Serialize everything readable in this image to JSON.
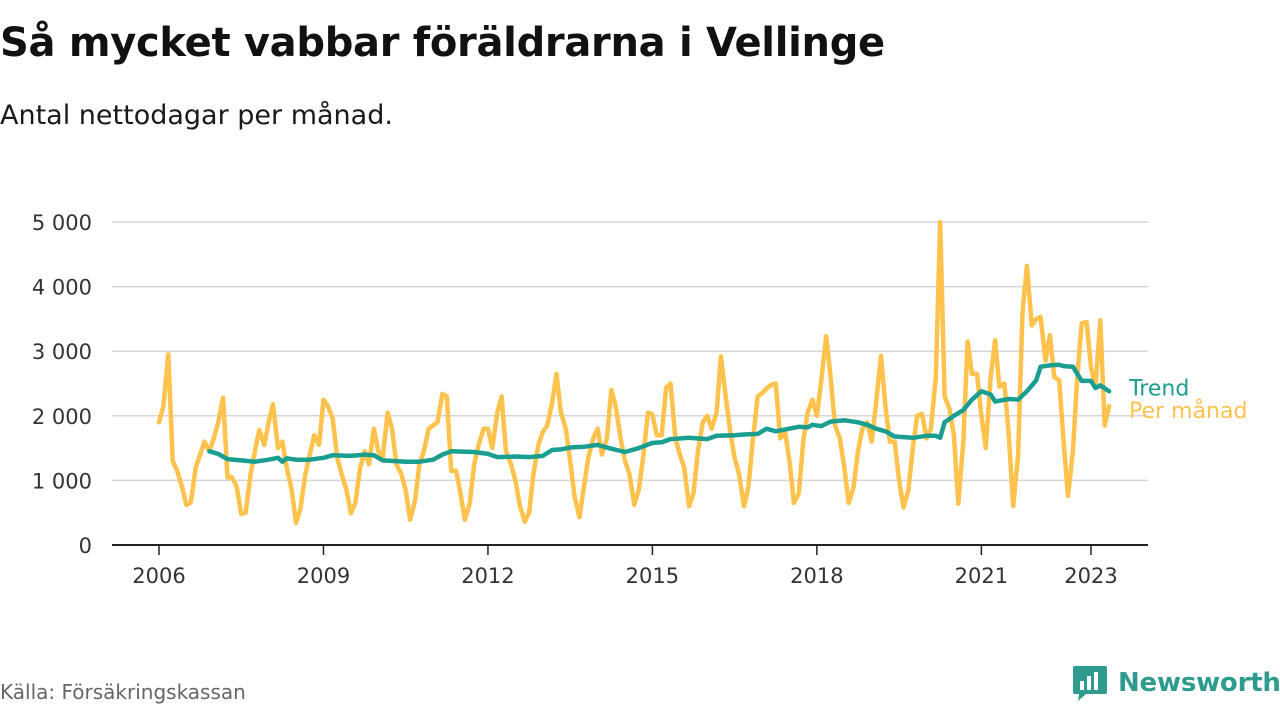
{
  "title": "Så mycket vabbar föräldrarna i Vellinge",
  "subtitle": "Antal nettodagar per månad.",
  "source": "Källa: Försäkringskassan",
  "brand": {
    "name": "Newsworthy",
    "icon": "newsworthy-logo-icon",
    "color": "#2f9a8e"
  },
  "chart_data": {
    "type": "line",
    "ylim": [
      0,
      5000
    ],
    "yticks": [
      {
        "value": 0,
        "label": "0"
      },
      {
        "value": 1000,
        "label": "1 000"
      },
      {
        "value": 2000,
        "label": "2 000"
      },
      {
        "value": 3000,
        "label": "3 000"
      },
      {
        "value": 4000,
        "label": "4 000"
      },
      {
        "value": 5000,
        "label": "5 000"
      }
    ],
    "xlim": [
      2005.2,
      2024.2
    ],
    "xticks": [
      {
        "value": 2006,
        "label": "2006"
      },
      {
        "value": 2009,
        "label": "2009"
      },
      {
        "value": 2012,
        "label": "2012"
      },
      {
        "value": 2015,
        "label": "2015"
      },
      {
        "value": 2018,
        "label": "2018"
      },
      {
        "value": 2021,
        "label": "2021"
      },
      {
        "value": 2023,
        "label": "2023"
      }
    ],
    "grid": true,
    "series": [
      {
        "name": "Per månad",
        "color": "#ffc24d",
        "points": [
          [
            2006.0,
            1900
          ],
          [
            2006.08,
            2150
          ],
          [
            2006.17,
            2950
          ],
          [
            2006.25,
            1300
          ],
          [
            2006.33,
            1150
          ],
          [
            2006.42,
            900
          ],
          [
            2006.5,
            620
          ],
          [
            2006.58,
            660
          ],
          [
            2006.67,
            1200
          ],
          [
            2006.75,
            1400
          ],
          [
            2006.83,
            1600
          ],
          [
            2006.92,
            1450
          ],
          [
            2007.0,
            1650
          ],
          [
            2007.08,
            1900
          ],
          [
            2007.17,
            2280
          ],
          [
            2007.25,
            1050
          ],
          [
            2007.33,
            1050
          ],
          [
            2007.42,
            900
          ],
          [
            2007.5,
            480
          ],
          [
            2007.58,
            500
          ],
          [
            2007.67,
            1100
          ],
          [
            2007.75,
            1450
          ],
          [
            2007.83,
            1780
          ],
          [
            2007.92,
            1550
          ],
          [
            2008.0,
            1900
          ],
          [
            2008.08,
            2180
          ],
          [
            2008.17,
            1500
          ],
          [
            2008.25,
            1600
          ],
          [
            2008.33,
            1200
          ],
          [
            2008.42,
            850
          ],
          [
            2008.5,
            340
          ],
          [
            2008.58,
            560
          ],
          [
            2008.67,
            1100
          ],
          [
            2008.75,
            1400
          ],
          [
            2008.83,
            1700
          ],
          [
            2008.92,
            1550
          ],
          [
            2009.0,
            2250
          ],
          [
            2009.08,
            2150
          ],
          [
            2009.17,
            1950
          ],
          [
            2009.25,
            1350
          ],
          [
            2009.33,
            1100
          ],
          [
            2009.42,
            850
          ],
          [
            2009.5,
            490
          ],
          [
            2009.58,
            650
          ],
          [
            2009.67,
            1200
          ],
          [
            2009.75,
            1450
          ],
          [
            2009.83,
            1250
          ],
          [
            2009.92,
            1800
          ],
          [
            2010.0,
            1450
          ],
          [
            2010.08,
            1350
          ],
          [
            2010.17,
            2050
          ],
          [
            2010.25,
            1800
          ],
          [
            2010.33,
            1250
          ],
          [
            2010.42,
            1100
          ],
          [
            2010.5,
            850
          ],
          [
            2010.58,
            390
          ],
          [
            2010.67,
            680
          ],
          [
            2010.75,
            1250
          ],
          [
            2010.83,
            1450
          ],
          [
            2010.92,
            1800
          ],
          [
            2011.0,
            1850
          ],
          [
            2011.08,
            1900
          ],
          [
            2011.17,
            2340
          ],
          [
            2011.25,
            2300
          ],
          [
            2011.33,
            1150
          ],
          [
            2011.42,
            1150
          ],
          [
            2011.5,
            800
          ],
          [
            2011.58,
            390
          ],
          [
            2011.67,
            650
          ],
          [
            2011.75,
            1250
          ],
          [
            2011.83,
            1550
          ],
          [
            2011.92,
            1800
          ],
          [
            2012.0,
            1800
          ],
          [
            2012.08,
            1500
          ],
          [
            2012.17,
            2050
          ],
          [
            2012.25,
            2300
          ],
          [
            2012.33,
            1450
          ],
          [
            2012.42,
            1250
          ],
          [
            2012.5,
            1000
          ],
          [
            2012.58,
            620
          ],
          [
            2012.67,
            360
          ],
          [
            2012.75,
            500
          ],
          [
            2012.83,
            1100
          ],
          [
            2012.92,
            1550
          ],
          [
            2013.0,
            1750
          ],
          [
            2013.08,
            1850
          ],
          [
            2013.17,
            2200
          ],
          [
            2013.25,
            2650
          ],
          [
            2013.33,
            2050
          ],
          [
            2013.42,
            1800
          ],
          [
            2013.5,
            1300
          ],
          [
            2013.58,
            750
          ],
          [
            2013.67,
            430
          ],
          [
            2013.75,
            900
          ],
          [
            2013.83,
            1350
          ],
          [
            2013.92,
            1650
          ],
          [
            2014.0,
            1800
          ],
          [
            2014.08,
            1400
          ],
          [
            2014.17,
            1650
          ],
          [
            2014.25,
            2400
          ],
          [
            2014.33,
            2150
          ],
          [
            2014.42,
            1650
          ],
          [
            2014.5,
            1300
          ],
          [
            2014.58,
            1100
          ],
          [
            2014.67,
            620
          ],
          [
            2014.75,
            850
          ],
          [
            2014.83,
            1350
          ],
          [
            2014.92,
            2050
          ],
          [
            2015.0,
            2020
          ],
          [
            2015.08,
            1700
          ],
          [
            2015.17,
            1700
          ],
          [
            2015.25,
            2430
          ],
          [
            2015.33,
            2500
          ],
          [
            2015.42,
            1650
          ],
          [
            2015.5,
            1400
          ],
          [
            2015.58,
            1200
          ],
          [
            2015.67,
            600
          ],
          [
            2015.75,
            800
          ],
          [
            2015.83,
            1450
          ],
          [
            2015.92,
            1900
          ],
          [
            2016.0,
            2000
          ],
          [
            2016.08,
            1800
          ],
          [
            2016.17,
            2050
          ],
          [
            2016.25,
            2920
          ],
          [
            2016.33,
            2350
          ],
          [
            2016.42,
            1750
          ],
          [
            2016.5,
            1350
          ],
          [
            2016.58,
            1100
          ],
          [
            2016.67,
            600
          ],
          [
            2016.75,
            900
          ],
          [
            2016.83,
            1600
          ],
          [
            2016.92,
            2300
          ],
          [
            2017.0,
            2350
          ],
          [
            2017.08,
            2420
          ],
          [
            2017.17,
            2480
          ],
          [
            2017.25,
            2500
          ],
          [
            2017.33,
            1650
          ],
          [
            2017.42,
            1750
          ],
          [
            2017.5,
            1300
          ],
          [
            2017.58,
            650
          ],
          [
            2017.67,
            800
          ],
          [
            2017.75,
            1600
          ],
          [
            2017.83,
            2050
          ],
          [
            2017.92,
            2250
          ],
          [
            2018.0,
            2000
          ],
          [
            2018.08,
            2550
          ],
          [
            2018.17,
            3230
          ],
          [
            2018.25,
            2600
          ],
          [
            2018.33,
            1850
          ],
          [
            2018.42,
            1650
          ],
          [
            2018.5,
            1200
          ],
          [
            2018.58,
            650
          ],
          [
            2018.67,
            900
          ],
          [
            2018.75,
            1450
          ],
          [
            2018.83,
            1800
          ],
          [
            2018.92,
            1900
          ],
          [
            2019.0,
            1600
          ],
          [
            2019.08,
            2200
          ],
          [
            2019.17,
            2930
          ],
          [
            2019.25,
            2150
          ],
          [
            2019.33,
            1600
          ],
          [
            2019.42,
            1600
          ],
          [
            2019.5,
            1000
          ],
          [
            2019.58,
            580
          ],
          [
            2019.67,
            850
          ],
          [
            2019.75,
            1500
          ],
          [
            2019.83,
            2000
          ],
          [
            2019.92,
            2030
          ],
          [
            2020.0,
            1650
          ],
          [
            2020.08,
            1800
          ],
          [
            2020.17,
            2600
          ],
          [
            2020.25,
            5000
          ],
          [
            2020.33,
            2300
          ],
          [
            2020.42,
            2100
          ],
          [
            2020.5,
            1700
          ],
          [
            2020.58,
            640
          ],
          [
            2020.67,
            1600
          ],
          [
            2020.75,
            3150
          ],
          [
            2020.83,
            2650
          ],
          [
            2020.92,
            2650
          ],
          [
            2021.0,
            2000
          ],
          [
            2021.08,
            1500
          ],
          [
            2021.17,
            2600
          ],
          [
            2021.25,
            3170
          ],
          [
            2021.33,
            2450
          ],
          [
            2021.42,
            2500
          ],
          [
            2021.5,
            1700
          ],
          [
            2021.58,
            600
          ],
          [
            2021.67,
            1400
          ],
          [
            2021.75,
            3600
          ],
          [
            2021.83,
            4320
          ],
          [
            2021.92,
            3400
          ],
          [
            2022.0,
            3500
          ],
          [
            2022.08,
            3530
          ],
          [
            2022.17,
            2850
          ],
          [
            2022.25,
            3250
          ],
          [
            2022.33,
            2600
          ],
          [
            2022.42,
            2550
          ],
          [
            2022.5,
            1600
          ],
          [
            2022.58,
            760
          ],
          [
            2022.67,
            1450
          ],
          [
            2022.75,
            2600
          ],
          [
            2022.83,
            3430
          ],
          [
            2022.92,
            3450
          ],
          [
            2023.0,
            2750
          ],
          [
            2023.08,
            2450
          ],
          [
            2023.17,
            3480
          ],
          [
            2023.25,
            1850
          ],
          [
            2023.33,
            2150
          ]
        ]
      },
      {
        "name": "Trend",
        "color": "#1a9e90",
        "points": [
          [
            2006.92,
            1450
          ],
          [
            2007.08,
            1410
          ],
          [
            2007.25,
            1330
          ],
          [
            2007.5,
            1310
          ],
          [
            2007.75,
            1290
          ],
          [
            2008.0,
            1320
          ],
          [
            2008.17,
            1350
          ],
          [
            2008.25,
            1290
          ],
          [
            2008.33,
            1340
          ],
          [
            2008.5,
            1320
          ],
          [
            2008.75,
            1320
          ],
          [
            2009.0,
            1350
          ],
          [
            2009.17,
            1390
          ],
          [
            2009.5,
            1380
          ],
          [
            2009.75,
            1400
          ],
          [
            2009.92,
            1390
          ],
          [
            2010.08,
            1310
          ],
          [
            2010.5,
            1290
          ],
          [
            2010.75,
            1290
          ],
          [
            2011.0,
            1320
          ],
          [
            2011.17,
            1400
          ],
          [
            2011.33,
            1450
          ],
          [
            2011.75,
            1440
          ],
          [
            2012.0,
            1410
          ],
          [
            2012.17,
            1360
          ],
          [
            2012.5,
            1370
          ],
          [
            2012.75,
            1360
          ],
          [
            2013.0,
            1380
          ],
          [
            2013.17,
            1470
          ],
          [
            2013.33,
            1480
          ],
          [
            2013.5,
            1510
          ],
          [
            2013.75,
            1520
          ],
          [
            2014.0,
            1550
          ],
          [
            2014.25,
            1490
          ],
          [
            2014.5,
            1440
          ],
          [
            2014.75,
            1500
          ],
          [
            2015.0,
            1580
          ],
          [
            2015.17,
            1590
          ],
          [
            2015.33,
            1640
          ],
          [
            2015.67,
            1660
          ],
          [
            2016.0,
            1640
          ],
          [
            2016.17,
            1690
          ],
          [
            2016.5,
            1700
          ],
          [
            2016.67,
            1710
          ],
          [
            2016.92,
            1720
          ],
          [
            2017.08,
            1800
          ],
          [
            2017.25,
            1760
          ],
          [
            2017.42,
            1790
          ],
          [
            2017.67,
            1830
          ],
          [
            2017.83,
            1820
          ],
          [
            2017.92,
            1860
          ],
          [
            2018.08,
            1840
          ],
          [
            2018.25,
            1910
          ],
          [
            2018.5,
            1930
          ],
          [
            2018.75,
            1900
          ],
          [
            2018.92,
            1860
          ],
          [
            2019.08,
            1800
          ],
          [
            2019.25,
            1760
          ],
          [
            2019.42,
            1680
          ],
          [
            2019.75,
            1660
          ],
          [
            2020.0,
            1690
          ],
          [
            2020.17,
            1690
          ],
          [
            2020.25,
            1660
          ],
          [
            2020.33,
            1900
          ],
          [
            2020.5,
            2000
          ],
          [
            2020.67,
            2090
          ],
          [
            2020.83,
            2250
          ],
          [
            2021.0,
            2380
          ],
          [
            2021.17,
            2330
          ],
          [
            2021.25,
            2220
          ],
          [
            2021.5,
            2260
          ],
          [
            2021.67,
            2250
          ],
          [
            2021.83,
            2380
          ],
          [
            2022.0,
            2550
          ],
          [
            2022.08,
            2760
          ],
          [
            2022.25,
            2780
          ],
          [
            2022.42,
            2790
          ],
          [
            2022.5,
            2770
          ],
          [
            2022.67,
            2760
          ],
          [
            2022.83,
            2540
          ],
          [
            2023.0,
            2540
          ],
          [
            2023.08,
            2430
          ],
          [
            2023.17,
            2470
          ],
          [
            2023.33,
            2380
          ]
        ]
      }
    ]
  }
}
